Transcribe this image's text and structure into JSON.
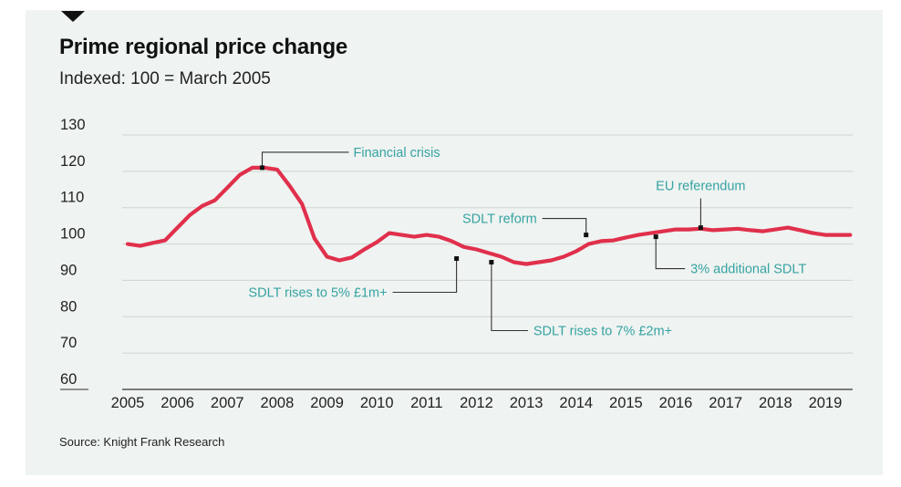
{
  "title": "Prime regional price change",
  "subtitle": "Indexed: 100 = March 2005",
  "source": "Source: Knight Frank Research",
  "colors": {
    "series": "#e0304c",
    "annotation": "#36a3a3",
    "background": "#eff3f1"
  },
  "chart_data": {
    "type": "line",
    "title": "Prime regional price change",
    "subtitle": "Indexed: 100 = March 2005",
    "xlabel": "",
    "ylabel": "",
    "xlim": [
      2005,
      2019.55
    ],
    "ylim": [
      60,
      130
    ],
    "yticks": [
      "60",
      "70",
      "80",
      "90",
      "100",
      "110",
      "120",
      "130"
    ],
    "xticks": [
      "2005",
      "2006",
      "2007",
      "2008",
      "2009",
      "2010",
      "2011",
      "2012",
      "2013",
      "2014",
      "2015",
      "2016",
      "2017",
      "2018",
      "2019"
    ],
    "grid": true,
    "legend": "none",
    "series": [
      {
        "x": [
          2005.0,
          2005.25,
          2005.5,
          2005.75,
          2006.0,
          2006.25,
          2006.5,
          2006.75,
          2007.0,
          2007.25,
          2007.5,
          2007.75,
          2008.0,
          2008.25,
          2008.5,
          2008.75,
          2009.0,
          2009.25,
          2009.5,
          2009.75,
          2010.0,
          2010.25,
          2010.5,
          2010.75,
          2011.0,
          2011.25,
          2011.5,
          2011.75,
          2012.0,
          2012.25,
          2012.5,
          2012.75,
          2013.0,
          2013.25,
          2013.5,
          2013.75,
          2014.0,
          2014.25,
          2014.5,
          2014.75,
          2015.0,
          2015.25,
          2015.5,
          2015.75,
          2016.0,
          2016.25,
          2016.5,
          2016.75,
          2017.0,
          2017.25,
          2017.5,
          2017.75,
          2018.0,
          2018.25,
          2018.5,
          2018.75,
          2019.0,
          2019.25,
          2019.5
        ],
        "values": [
          100.0,
          99.5,
          100.3,
          101.0,
          104.5,
          108.0,
          110.5,
          112.0,
          115.5,
          119.0,
          121.0,
          121.0,
          120.5,
          116.0,
          111.0,
          101.5,
          96.5,
          95.5,
          96.3,
          98.5,
          100.5,
          103.0,
          102.5,
          102.0,
          102.5,
          102.0,
          100.8,
          99.2,
          98.5,
          97.5,
          96.5,
          95.0,
          94.5,
          95.0,
          95.5,
          96.5,
          98.0,
          100.0,
          100.8,
          101.0,
          101.8,
          102.5,
          103.0,
          103.5,
          104.0,
          104.0,
          104.2,
          103.8,
          104.0,
          104.2,
          103.8,
          103.5,
          104.0,
          104.5,
          103.8,
          103.0,
          102.5,
          102.5,
          102.5
        ]
      }
    ],
    "annotations": [
      {
        "label": "Financial crisis",
        "x": 2007.7,
        "y": 121
      },
      {
        "label": "EU referendum",
        "x": 2016.5,
        "y": 104.5
      },
      {
        "label": "SDLT reform",
        "x": 2014.2,
        "y": 102.5
      },
      {
        "label": "3% additional SDLT",
        "x": 2015.6,
        "y": 102
      },
      {
        "label": "SDLT rises to 5% £1m+",
        "x": 2011.6,
        "y": 96
      },
      {
        "label": "SDLT rises to 7% £2m+",
        "x": 2012.3,
        "y": 95
      }
    ]
  }
}
